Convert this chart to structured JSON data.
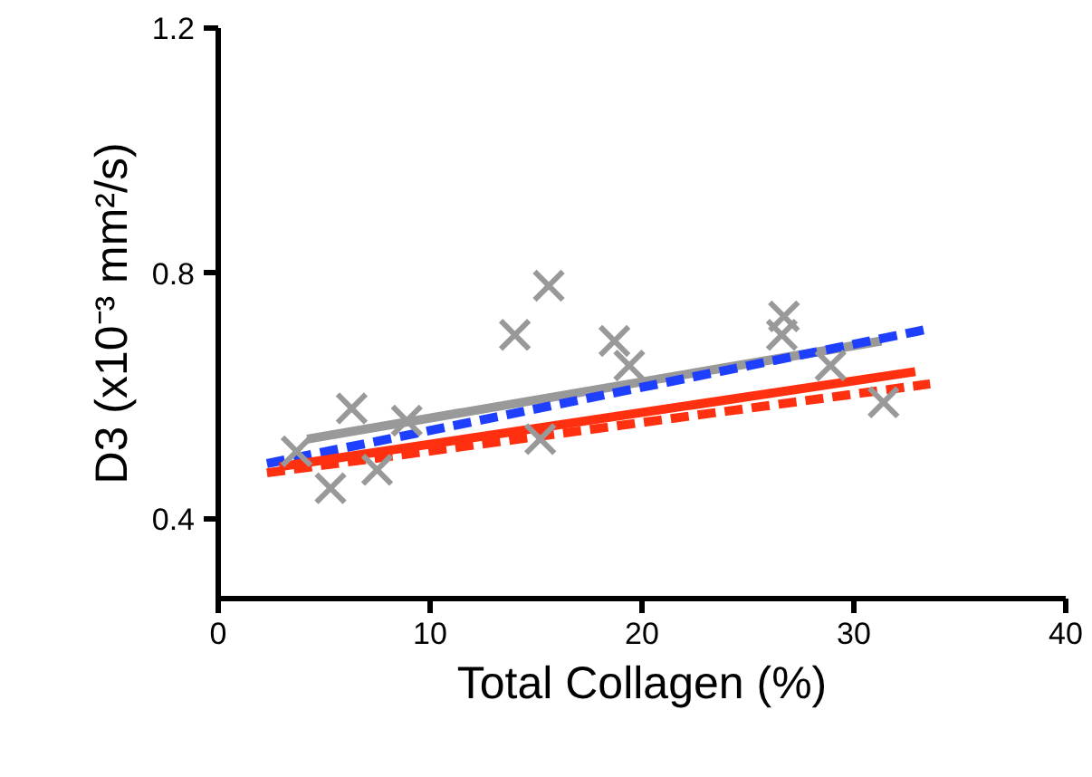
{
  "chart_data": {
    "type": "scatter",
    "xlabel": "Total Collagen (%)",
    "ylabel": "D3 (x10⁻³ mm²/s)",
    "xlim": [
      0,
      40
    ],
    "ylim": [
      0.27,
      1.2
    ],
    "xticks": [
      0,
      10,
      20,
      30,
      40
    ],
    "yticks": [
      0.4,
      0.8,
      1.2
    ],
    "grid": false,
    "series": [
      {
        "marker": "cross",
        "color": "#999999",
        "x": [
          3.7,
          6.3,
          5.3,
          7.5,
          8.9,
          14.0,
          15.6,
          15.2,
          18.7,
          19.4,
          26.7,
          26.6,
          28.9,
          31.4
        ],
        "values": [
          0.51,
          0.58,
          0.45,
          0.48,
          0.56,
          0.7,
          0.78,
          0.53,
          0.69,
          0.65,
          0.73,
          0.7,
          0.65,
          0.59
        ]
      },
      {
        "type": "line",
        "line_style": "solid",
        "color": "#999999",
        "x": [
          4.2,
          31.3
        ],
        "values": [
          0.53,
          0.69
        ]
      },
      {
        "type": "line",
        "line_style": "dashed",
        "color": "#1f3fff",
        "x": [
          2.3,
          33.6
        ],
        "values": [
          0.49,
          0.71
        ]
      },
      {
        "type": "line",
        "line_style": "dashed",
        "color": "#ff3010",
        "x": [
          2.3,
          33.6
        ],
        "values": [
          0.475,
          0.62
        ]
      },
      {
        "type": "line",
        "line_style": "solid",
        "color": "#ff3010",
        "x": [
          2.9,
          32.9
        ],
        "values": [
          0.485,
          0.64
        ]
      }
    ]
  }
}
